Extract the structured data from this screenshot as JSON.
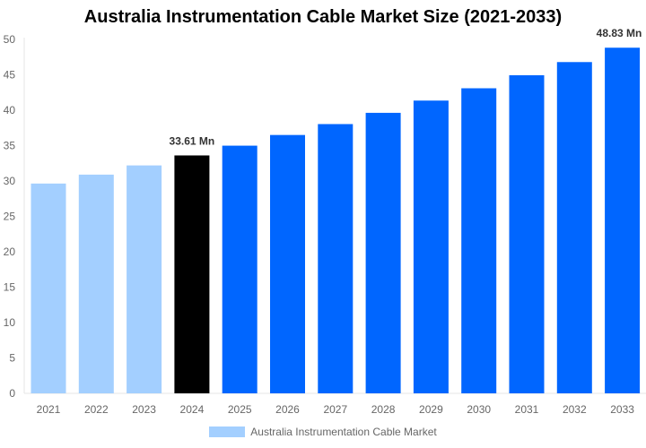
{
  "chart_data": {
    "type": "bar",
    "title": "Australia Instrumentation Cable Market Size (2021-2033)",
    "categories": [
      "2021",
      "2022",
      "2023",
      "2024",
      "2025",
      "2026",
      "2027",
      "2028",
      "2029",
      "2030",
      "2031",
      "2032",
      "2033"
    ],
    "series": [
      {
        "name": "Australia Instrumentation Cable Market",
        "values": [
          29.64,
          30.9,
          32.2,
          33.61,
          34.99,
          36.5,
          38.04,
          39.63,
          41.36,
          43.1,
          44.94,
          46.8,
          48.83
        ]
      }
    ],
    "data_labels": {
      "3": "33.61 Mn",
      "12": "48.83 Mn"
    },
    "ylim": [
      0,
      50
    ],
    "yticks": [
      0,
      5,
      10,
      15,
      20,
      25,
      30,
      35,
      40,
      45,
      50
    ],
    "grid": false,
    "legend": "bottom",
    "colors": {
      "historical": "#a3cfff",
      "current": "#000000",
      "forecast": "#0066ff"
    }
  }
}
